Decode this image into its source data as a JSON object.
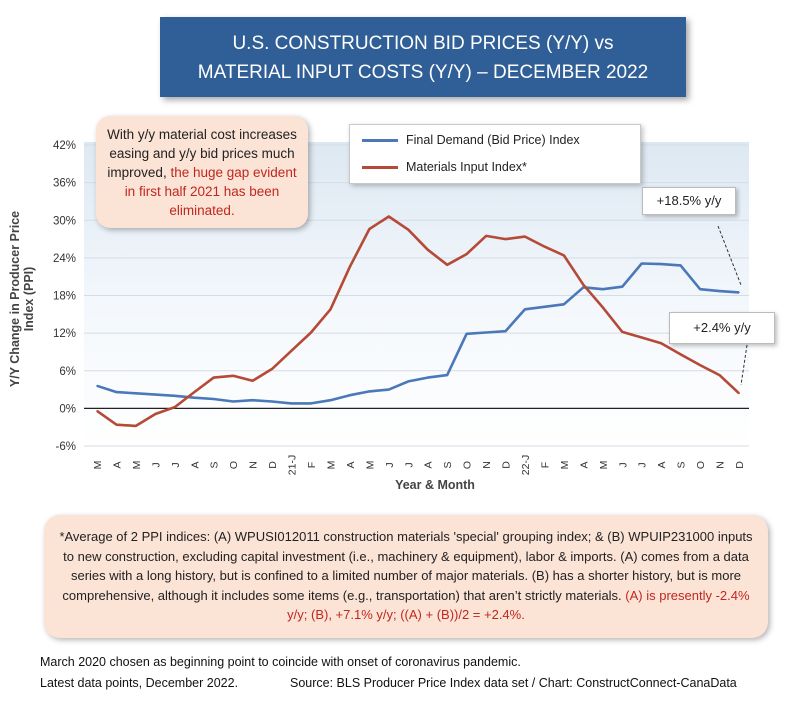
{
  "header": {
    "line1": "U.S. CONSTRUCTION BID PRICES (Y/Y) vs",
    "line2": "MATERIAL INPUT COSTS (Y/Y) –  DECEMBER 2022"
  },
  "callout": {
    "text_plain": "With y/y material cost increases easing and y/y bid prices much improved,",
    "text_red": "the huge gap evident in first half 2021 has been eliminated."
  },
  "labels": {
    "final_demand_end": "+18.5% y/y",
    "materials_end": "+2.4% y/y"
  },
  "note": {
    "text_plain": "*Average of 2 PPI indices: (A) WPUSI012011 construction materials 'special' grouping index; & (B) WPUIP231000 inputs to new construction, excluding capital investment (i.e., machinery & equipment), labor & imports. (A) comes from a data series with a long history, but is confined to a limited number of major materials. (B) has a shorter history, but is more comprehensive, although it includes some items (e.g., transportation) that aren’t strictly materials.",
    "text_red": "(A) is presently -2.4% y/y; (B), +7.1% y/y; ((A) + (B))/2 = +2.4%."
  },
  "footer": {
    "line1": "March 2020 chosen as beginning point to coincide with onset of coronavirus pandemic.",
    "line2_left": "Latest data points, December 2022.",
    "line2_right": "Source: BLS Producer Price Index data set / Chart: ConstructConnect-CanaData"
  },
  "chart_data": {
    "type": "line",
    "title": "U.S. CONSTRUCTION BID PRICES (Y/Y) vs MATERIAL INPUT COSTS (Y/Y) – DECEMBER 2022",
    "xlabel": "Year & Month",
    "ylabel": "Y/Y Change in Producer Price Index (PPI)",
    "ylim": [
      -6,
      42
    ],
    "yticks": [
      "-6%",
      "0%",
      "6%",
      "12%",
      "18%",
      "24%",
      "30%",
      "36%",
      "42%"
    ],
    "ytick_values": [
      -6,
      0,
      6,
      12,
      18,
      24,
      30,
      36,
      42
    ],
    "categories": [
      "M",
      "A",
      "M",
      "J",
      "J",
      "A",
      "S",
      "O",
      "N",
      "D",
      "21-J",
      "F",
      "M",
      "A",
      "M",
      "J",
      "J",
      "A",
      "S",
      "O",
      "N",
      "D",
      "22-J",
      "F",
      "M",
      "A",
      "M",
      "J",
      "J",
      "A",
      "S",
      "O",
      "N",
      "D"
    ],
    "legend_position": "top-center",
    "series": [
      {
        "name": "Final Demand (Bid Price) Index",
        "color": "#4a78b8",
        "values": [
          3.6,
          2.6,
          2.4,
          2.2,
          2.0,
          1.7,
          1.5,
          1.1,
          1.3,
          1.1,
          0.8,
          0.8,
          1.3,
          2.1,
          2.7,
          3.0,
          4.3,
          4.9,
          5.3,
          11.9,
          12.1,
          12.3,
          15.8,
          16.2,
          16.6,
          19.3,
          19.0,
          19.4,
          23.1,
          23.0,
          22.8,
          19.0,
          18.7,
          18.5
        ]
      },
      {
        "name": "Materials Input Index*",
        "color": "#b54a37",
        "values": [
          -0.4,
          -2.6,
          -2.8,
          -0.9,
          0.2,
          2.6,
          4.9,
          5.2,
          4.4,
          6.3,
          9.2,
          12.1,
          15.8,
          22.6,
          28.6,
          30.6,
          28.5,
          25.3,
          22.9,
          24.6,
          27.5,
          27.0,
          27.4,
          25.8,
          24.4,
          19.7,
          16.1,
          12.2,
          11.3,
          10.4,
          8.6,
          6.9,
          5.3,
          2.4
        ]
      }
    ]
  }
}
